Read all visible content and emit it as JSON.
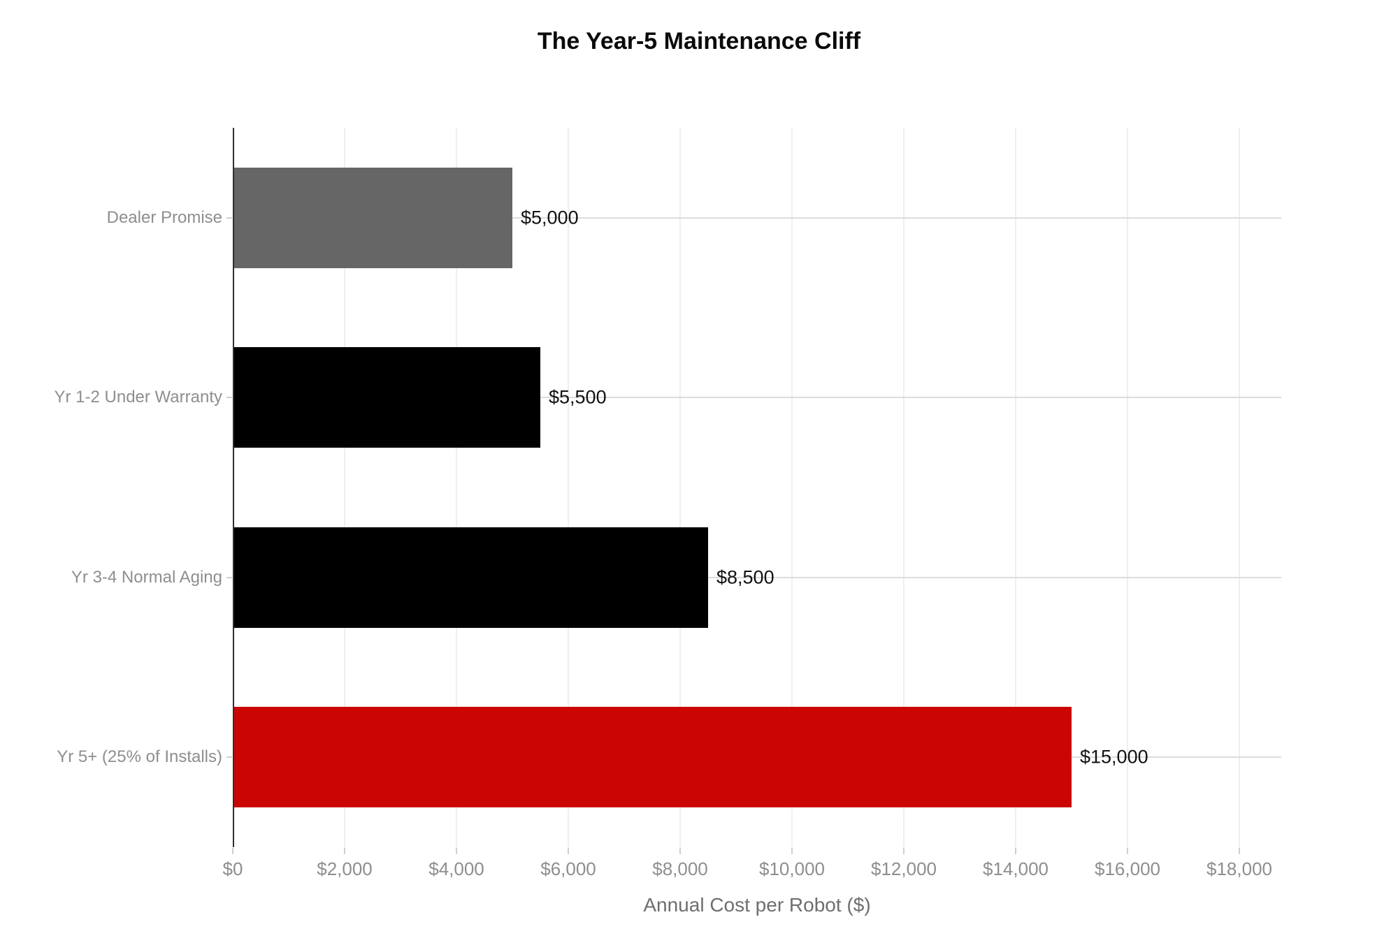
{
  "chart_data": {
    "type": "bar",
    "orientation": "horizontal",
    "title": "The Year-5 Maintenance Cliff",
    "xlabel": "Annual Cost per Robot ($)",
    "categories": [
      "Dealer Promise",
      "Yr 1-2 Under Warranty",
      "Yr 3-4 Normal Aging",
      "Yr 5+ (25% of Installs)"
    ],
    "values": [
      5000,
      5500,
      8500,
      15000
    ],
    "value_labels": [
      "$5,000",
      "$5,500",
      "$8,500",
      "$15,000"
    ],
    "bar_colors": [
      "#666666",
      "#000000",
      "#000000",
      "#cb0404"
    ],
    "xlim": [
      0,
      18750
    ],
    "xticks": [
      0,
      2000,
      4000,
      6000,
      8000,
      10000,
      12000,
      14000,
      16000,
      18000
    ],
    "xtick_labels": [
      "$0",
      "$2,000",
      "$4,000",
      "$6,000",
      "$8,000",
      "$10,000",
      "$12,000",
      "$14,000",
      "$16,000",
      "$18,000"
    ],
    "grid": "both",
    "legend": "none",
    "colors": {
      "promise_bar": "#666666",
      "baseline_bar": "#000000",
      "cliff_bar": "#cb0404",
      "label_gray": "#8e8e8e",
      "axis_line": "#2e2e2e"
    }
  }
}
